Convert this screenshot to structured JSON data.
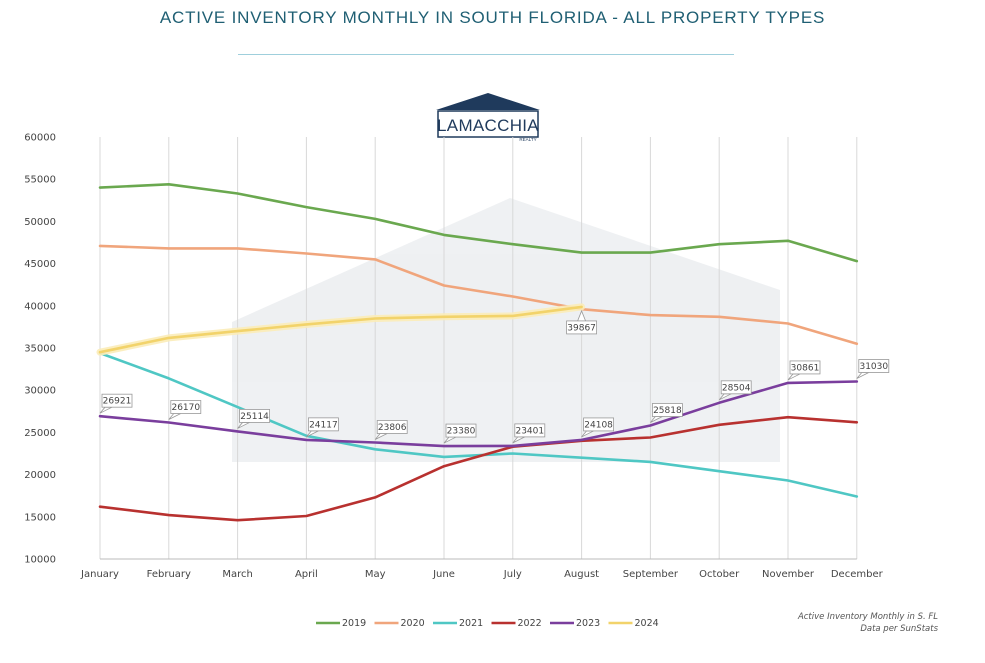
{
  "header": {
    "title": "ACTIVE INVENTORY MONTHLY IN SOUTH FLORIDA - ALL PROPERTY TYPES"
  },
  "logo": {
    "name": "LAMACCHIA",
    "sub": "REALTY",
    "color": "#1f3a5c"
  },
  "footnote": {
    "line1": "Active Inventory Monthly in S. FL",
    "line2": "Data per SunStats"
  },
  "chart_data": {
    "type": "line",
    "title": "ACTIVE INVENTORY MONTHLY IN SOUTH FLORIDA - ALL PROPERTY TYPES",
    "xlabel": "",
    "ylabel": "",
    "ylim": [
      10000,
      60000
    ],
    "yticks": [
      10000,
      15000,
      20000,
      25000,
      30000,
      35000,
      40000,
      45000,
      50000,
      55000,
      60000
    ],
    "grid": "vertical",
    "legend": "bottom",
    "categories": [
      "January",
      "February",
      "March",
      "April",
      "May",
      "June",
      "July",
      "August",
      "September",
      "October",
      "November",
      "December"
    ],
    "series": [
      {
        "name": "2019",
        "color": "#6aa84f",
        "values": [
          54000,
          54400,
          53300,
          51700,
          50300,
          48400,
          47300,
          46300,
          46300,
          47300,
          47700,
          45300
        ]
      },
      {
        "name": "2020",
        "color": "#f0a57c",
        "values": [
          47100,
          46800,
          46800,
          46200,
          45500,
          42400,
          41100,
          39600,
          38900,
          38700,
          37900,
          35500
        ]
      },
      {
        "name": "2021",
        "color": "#4fc7c4",
        "values": [
          34400,
          31400,
          28000,
          24600,
          23000,
          22100,
          22500,
          22000,
          21500,
          20400,
          19300,
          17400
        ]
      },
      {
        "name": "2022",
        "color": "#b8312f",
        "values": [
          16200,
          15200,
          14600,
          15100,
          17300,
          21000,
          23300,
          24000,
          24400,
          25900,
          26800,
          26200
        ]
      },
      {
        "name": "2023",
        "color": "#7a3e9d",
        "values": [
          26921,
          26170,
          25114,
          24117,
          23806,
          23380,
          23401,
          24108,
          25818,
          28504,
          30861,
          31030
        ]
      },
      {
        "name": "2024",
        "color": "#f2d36b",
        "values": [
          34500,
          36200,
          37000,
          37800,
          38500,
          38700,
          38800,
          39867,
          null,
          null,
          null,
          null
        ]
      }
    ],
    "data_labels": [
      {
        "series": "2023",
        "index": 0,
        "text": "26921"
      },
      {
        "series": "2023",
        "index": 1,
        "text": "26170"
      },
      {
        "series": "2023",
        "index": 2,
        "text": "25114"
      },
      {
        "series": "2023",
        "index": 3,
        "text": "24117"
      },
      {
        "series": "2023",
        "index": 4,
        "text": "23806"
      },
      {
        "series": "2023",
        "index": 5,
        "text": "23380"
      },
      {
        "series": "2023",
        "index": 6,
        "text": "23401"
      },
      {
        "series": "2023",
        "index": 7,
        "text": "24108"
      },
      {
        "series": "2023",
        "index": 8,
        "text": "25818"
      },
      {
        "series": "2023",
        "index": 9,
        "text": "28504"
      },
      {
        "series": "2023",
        "index": 10,
        "text": "30861"
      },
      {
        "series": "2023",
        "index": 11,
        "text": "31030"
      },
      {
        "series": "2024",
        "index": 7,
        "text": "39867"
      }
    ]
  }
}
